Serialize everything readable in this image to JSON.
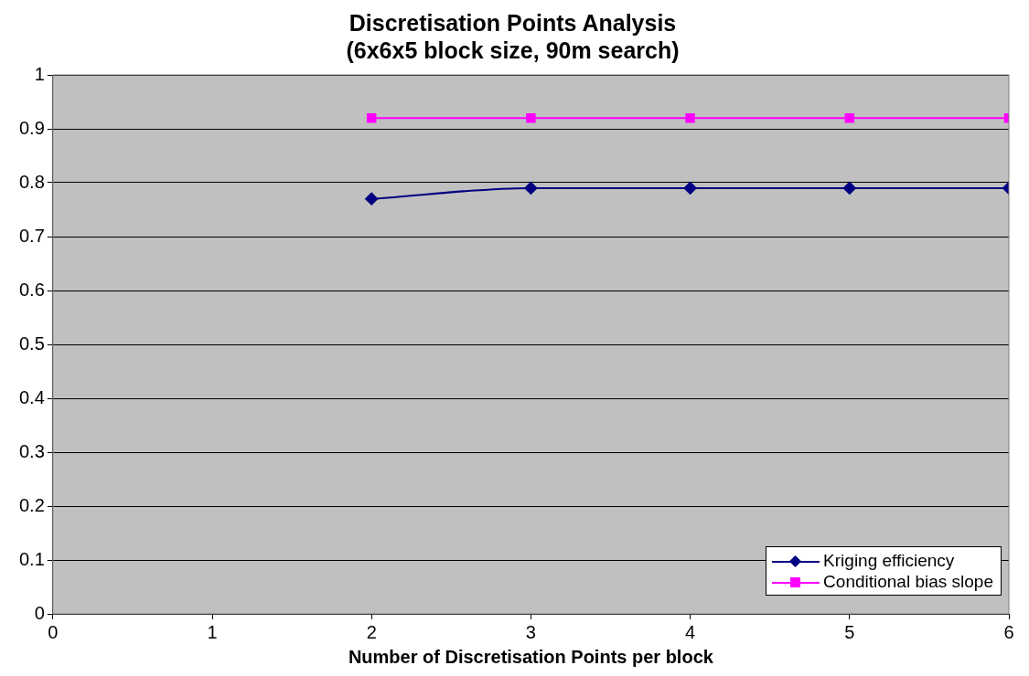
{
  "chart_data": {
    "type": "line",
    "title": "Discretisation Points Analysis",
    "subtitle": "(6x6x5 block size, 90m search)",
    "xlabel": "Number of Discretisation Points per block",
    "x": [
      2,
      3,
      4,
      5,
      6
    ],
    "series": [
      {
        "name": "Kriging efficiency",
        "color": "#000080",
        "marker": "diamond",
        "values": [
          0.77,
          0.79,
          0.79,
          0.79,
          0.79
        ]
      },
      {
        "name": "Conditional bias slope",
        "color": "#ff00ff",
        "marker": "square",
        "values": [
          0.92,
          0.92,
          0.92,
          0.92,
          0.92
        ]
      }
    ],
    "xlim": [
      0,
      6
    ],
    "xticks": [
      0,
      1,
      2,
      3,
      4,
      5,
      6
    ],
    "ylim": [
      0,
      1
    ],
    "yticks": [
      0,
      0.1,
      0.2,
      0.3,
      0.4,
      0.5,
      0.6,
      0.7,
      0.8,
      0.9,
      1
    ],
    "grid": "y",
    "legend": "bottom right",
    "line_style": "solid"
  }
}
